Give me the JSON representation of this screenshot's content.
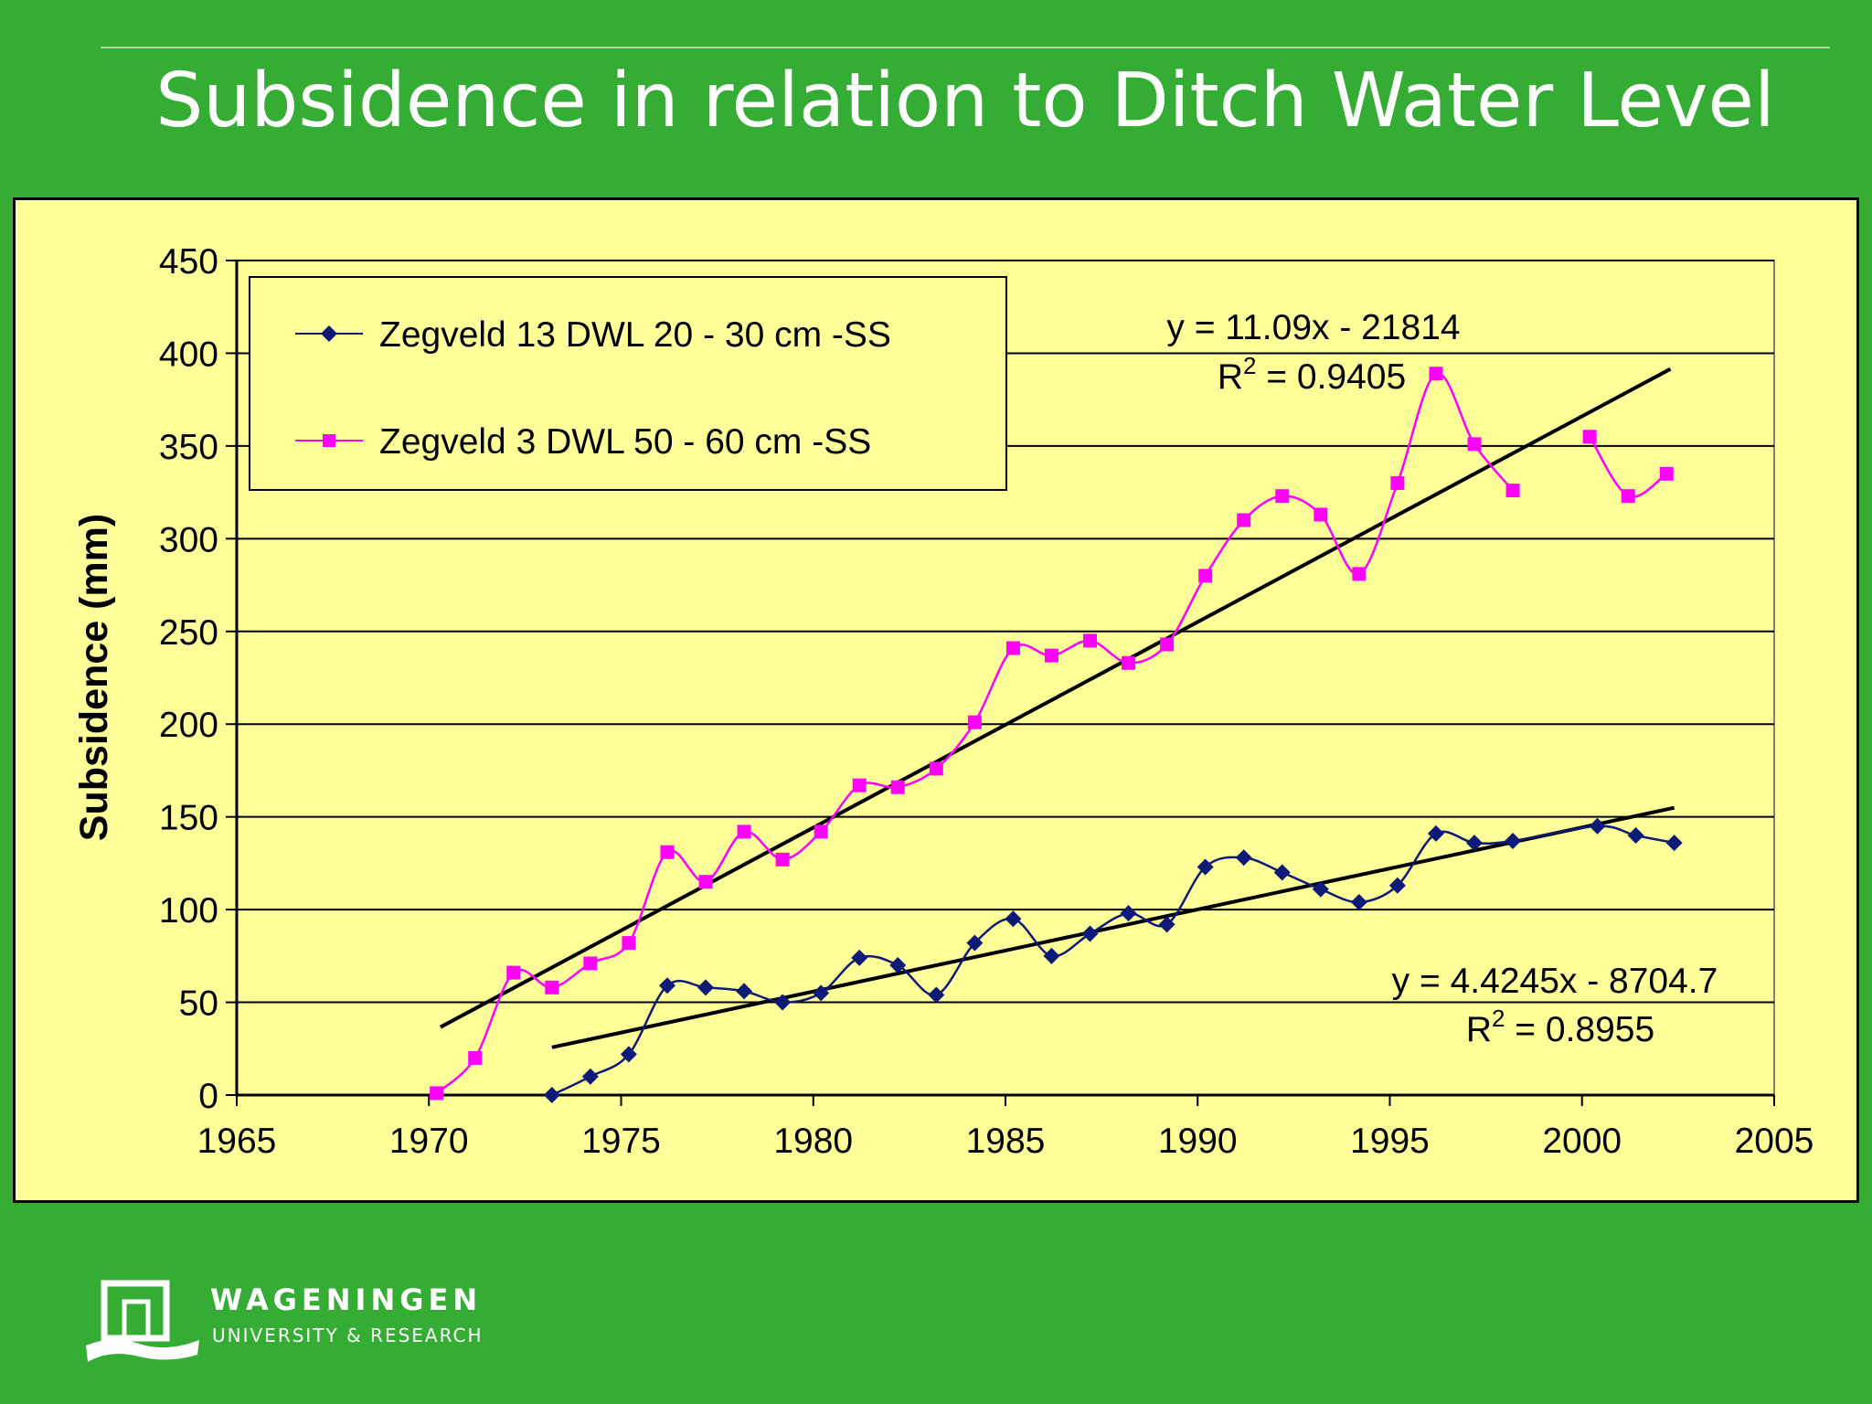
{
  "slide": {
    "title": "Subsidence in relation to Ditch Water Level"
  },
  "chart_data": {
    "type": "line",
    "title": "",
    "xlabel": "",
    "ylabel": "Subsidence (mm)",
    "xlim": [
      1965,
      2005
    ],
    "ylim": [
      0,
      450
    ],
    "x_ticks": [
      1965,
      1970,
      1975,
      1980,
      1985,
      1990,
      1995,
      2000,
      2005
    ],
    "y_ticks": [
      0,
      50,
      100,
      150,
      200,
      250,
      300,
      350,
      400,
      450
    ],
    "grid": "horizontal",
    "legend_position": "top-left",
    "series": [
      {
        "name": "Zegveld 13 DWL 20 - 30 cm -SS",
        "color": "#0d1a78",
        "marker": "diamond",
        "segments": [
          [
            [
              1973.2,
              0
            ],
            [
              1974.2,
              10
            ],
            [
              1975.2,
              22
            ],
            [
              1976.2,
              59
            ],
            [
              1977.2,
              58
            ],
            [
              1978.2,
              56
            ],
            [
              1979.2,
              50
            ],
            [
              1980.2,
              55
            ],
            [
              1981.2,
              74
            ],
            [
              1982.2,
              70
            ],
            [
              1983.2,
              54
            ],
            [
              1984.2,
              82
            ],
            [
              1985.2,
              95
            ],
            [
              1986.2,
              75
            ],
            [
              1987.2,
              87
            ],
            [
              1988.2,
              98
            ],
            [
              1989.2,
              92
            ],
            [
              1990.2,
              123
            ],
            [
              1991.2,
              128
            ],
            [
              1992.2,
              120
            ],
            [
              1993.2,
              111
            ],
            [
              1994.2,
              104
            ],
            [
              1995.2,
              113
            ],
            [
              1996.2,
              141
            ],
            [
              1997.2,
              136
            ],
            [
              1998.2,
              137
            ],
            [
              2000.4,
              145
            ],
            [
              2001.4,
              140
            ],
            [
              2002.4,
              136
            ]
          ]
        ],
        "trendline": {
          "equation": "y = 4.4245x - 8704.7",
          "r2_label": "R",
          "r2_sup": "2",
          "r2_value": " = 0.8955",
          "slope": 4.4245,
          "intercept": -8704.7,
          "x_range": [
            1973.2,
            2002.4
          ]
        }
      },
      {
        "name": "Zegveld 3 DWL 50 - 60 cm -SS",
        "color": "#ff00ff",
        "marker": "square",
        "segments": [
          [
            [
              1970.2,
              1
            ],
            [
              1971.2,
              20
            ],
            [
              1972.2,
              66
            ],
            [
              1973.2,
              58
            ],
            [
              1974.2,
              71
            ],
            [
              1975.2,
              82
            ],
            [
              1976.2,
              131
            ],
            [
              1977.2,
              115
            ],
            [
              1978.2,
              142
            ],
            [
              1979.2,
              127
            ],
            [
              1980.2,
              142
            ],
            [
              1981.2,
              167
            ],
            [
              1982.2,
              166
            ],
            [
              1983.2,
              176
            ],
            [
              1984.2,
              201
            ],
            [
              1985.2,
              241
            ],
            [
              1986.2,
              237
            ],
            [
              1987.2,
              245
            ],
            [
              1988.2,
              233
            ],
            [
              1989.2,
              243
            ],
            [
              1990.2,
              280
            ],
            [
              1991.2,
              310
            ],
            [
              1992.2,
              323
            ],
            [
              1993.2,
              313
            ],
            [
              1994.2,
              281
            ],
            [
              1995.2,
              330
            ],
            [
              1996.2,
              389
            ],
            [
              1997.2,
              351
            ],
            [
              1998.2,
              326
            ]
          ],
          [
            [
              2000.2,
              355
            ],
            [
              2001.2,
              323
            ],
            [
              2002.2,
              335
            ]
          ]
        ],
        "trendline": {
          "equation": "y = 11.09x - 21814",
          "r2_label": "R",
          "r2_sup": "2",
          "r2_value": " = 0.9405",
          "slope": 11.09,
          "intercept": -21814,
          "x_range": [
            1970.3,
            2002.3
          ]
        }
      }
    ]
  },
  "branding": {
    "logo_name": "wageningen-logo",
    "wordmark": "WAGENINGEN",
    "subline": "UNIVERSITY & RESEARCH"
  },
  "colors": {
    "background": "#35ad34",
    "plot_area": "#ffff99",
    "trendline": "#000000"
  }
}
